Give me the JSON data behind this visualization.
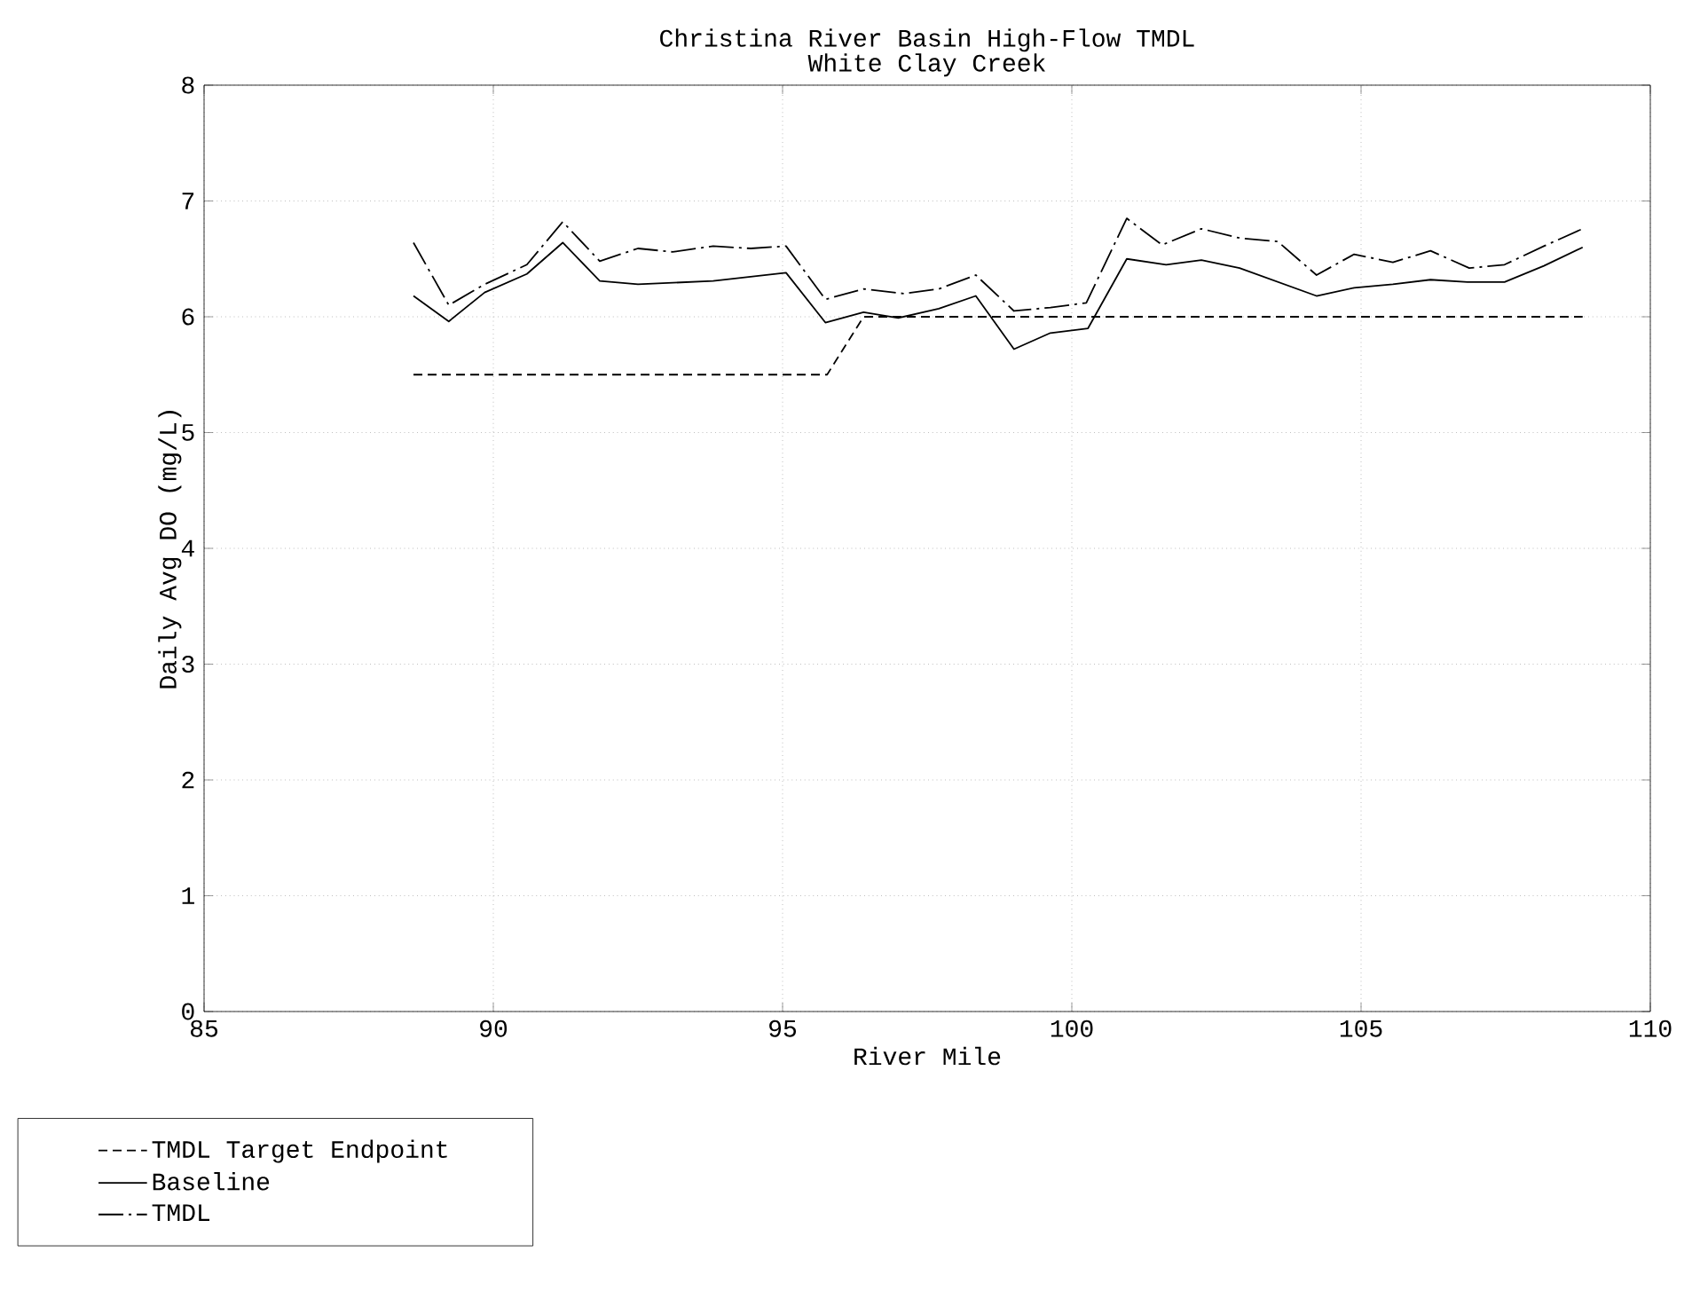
{
  "chart_data": {
    "type": "line",
    "title": "Christina River Basin High-Flow TMDL",
    "subtitle": "White Clay Creek",
    "xlabel": "River Mile",
    "ylabel": "Daily Avg DO (mg/L)",
    "xlim": [
      85,
      110
    ],
    "xticks": [
      85,
      90,
      95,
      100,
      105,
      110
    ],
    "ylim": [
      0,
      8
    ],
    "yticks": [
      0,
      1,
      2,
      3,
      4,
      5,
      6,
      7,
      8
    ],
    "grid": true,
    "legend": "bottom",
    "series": [
      {
        "name": "TMDL Target Endpoint",
        "color": "#000000",
        "line_style": "dashed",
        "x": [
          88.62,
          95.77,
          96.4,
          108.83
        ],
        "values": [
          5.5,
          5.5,
          6.0,
          6.0
        ]
      },
      {
        "name": "Baseline",
        "color": "#000000",
        "line_style": "solid",
        "x": [
          88.62,
          89.23,
          89.85,
          90.58,
          91.2,
          91.84,
          92.5,
          93.8,
          95.06,
          95.74,
          96.4,
          97.0,
          97.7,
          98.34,
          99.0,
          99.63,
          100.28,
          100.95,
          101.63,
          102.24,
          102.9,
          104.23,
          104.88,
          105.55,
          106.2,
          106.84,
          107.48,
          108.16,
          108.83
        ],
        "values": [
          6.18,
          5.96,
          6.21,
          6.37,
          6.64,
          6.31,
          6.28,
          6.31,
          6.38,
          5.95,
          6.04,
          5.99,
          6.07,
          6.18,
          5.72,
          5.86,
          5.9,
          6.5,
          6.45,
          6.49,
          6.42,
          6.18,
          6.25,
          6.28,
          6.32,
          6.3,
          6.3,
          6.44,
          6.6
        ]
      },
      {
        "name": "TMDL",
        "color": "#000000",
        "line_style": "dashdot",
        "x": [
          88.62,
          89.23,
          89.85,
          90.58,
          91.2,
          91.84,
          92.5,
          93.1,
          93.8,
          94.45,
          95.06,
          95.74,
          96.4,
          97.1,
          97.7,
          98.34,
          99.0,
          99.63,
          100.25,
          100.95,
          101.56,
          102.24,
          102.9,
          103.56,
          104.23,
          104.88,
          105.55,
          106.2,
          106.87,
          107.48,
          108.16,
          108.83
        ],
        "values": [
          6.64,
          6.1,
          6.28,
          6.45,
          6.82,
          6.48,
          6.59,
          6.56,
          6.61,
          6.59,
          6.61,
          6.15,
          6.24,
          6.2,
          6.24,
          6.36,
          6.05,
          6.08,
          6.12,
          6.85,
          6.62,
          6.76,
          6.68,
          6.65,
          6.36,
          6.54,
          6.47,
          6.57,
          6.42,
          6.45,
          6.61,
          6.76
        ]
      }
    ]
  }
}
